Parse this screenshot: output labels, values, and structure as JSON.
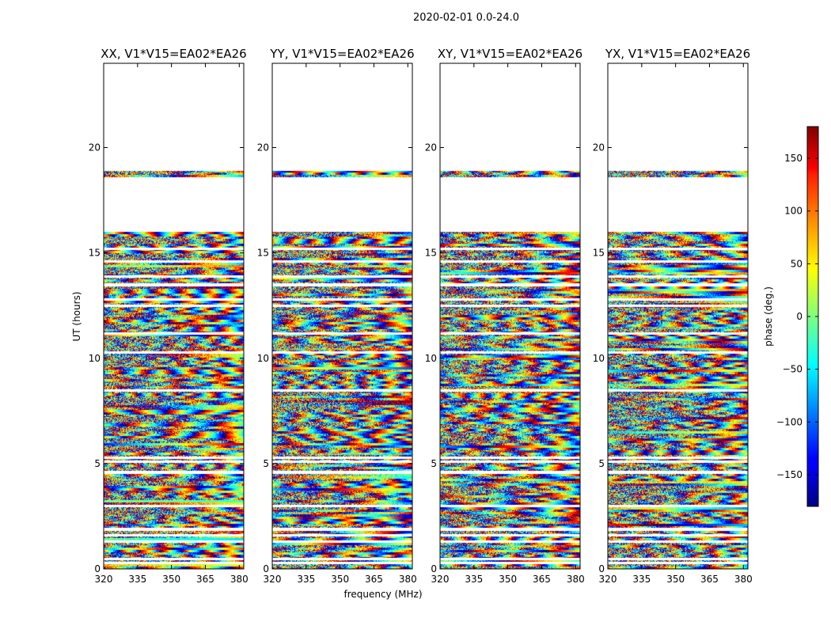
{
  "figure_title": "2020-02-01 0.0-24.0",
  "xlabel": "frequency (MHz)",
  "ylabel": "UT (hours)",
  "colorbar_label": "phase (deg.)",
  "chart_data": {
    "type": "heatmap",
    "title": "2020-02-01 0.0-24.0",
    "xlabel": "frequency (MHz)",
    "ylabel": "UT (hours)",
    "xlim": [
      320,
      382
    ],
    "ylim": [
      0,
      24
    ],
    "xticks": [
      320,
      335,
      350,
      365,
      380
    ],
    "yticks": [
      0,
      5,
      10,
      15,
      20
    ],
    "panels": [
      {
        "title": "XX, V1*V15=EA02*EA26"
      },
      {
        "title": "YY, V1*V15=EA02*EA26"
      },
      {
        "title": "XY, V1*V15=EA02*EA26"
      },
      {
        "title": "YX, V1*V15=EA02*EA26"
      }
    ],
    "colorbar": {
      "label": "phase (deg.)",
      "range": [
        -180,
        180
      ],
      "ticks": [
        150,
        100,
        50,
        0,
        -50,
        -100,
        -150
      ],
      "colormap": "jet"
    },
    "data_bands_hours": [
      [
        0.0,
        16.0
      ],
      [
        18.6,
        18.9
      ]
    ],
    "gap_bands_hours": [
      [
        16.0,
        18.6
      ],
      [
        18.9,
        24.0
      ]
    ],
    "gap_lines_hours": [
      0.3,
      0.5,
      1.3,
      1.6,
      1.9,
      3.0,
      4.6,
      5.1,
      5.3,
      8.5,
      10.3,
      11.2,
      12.5,
      12.8,
      13.5,
      13.9,
      14.6,
      15.2
    ]
  }
}
